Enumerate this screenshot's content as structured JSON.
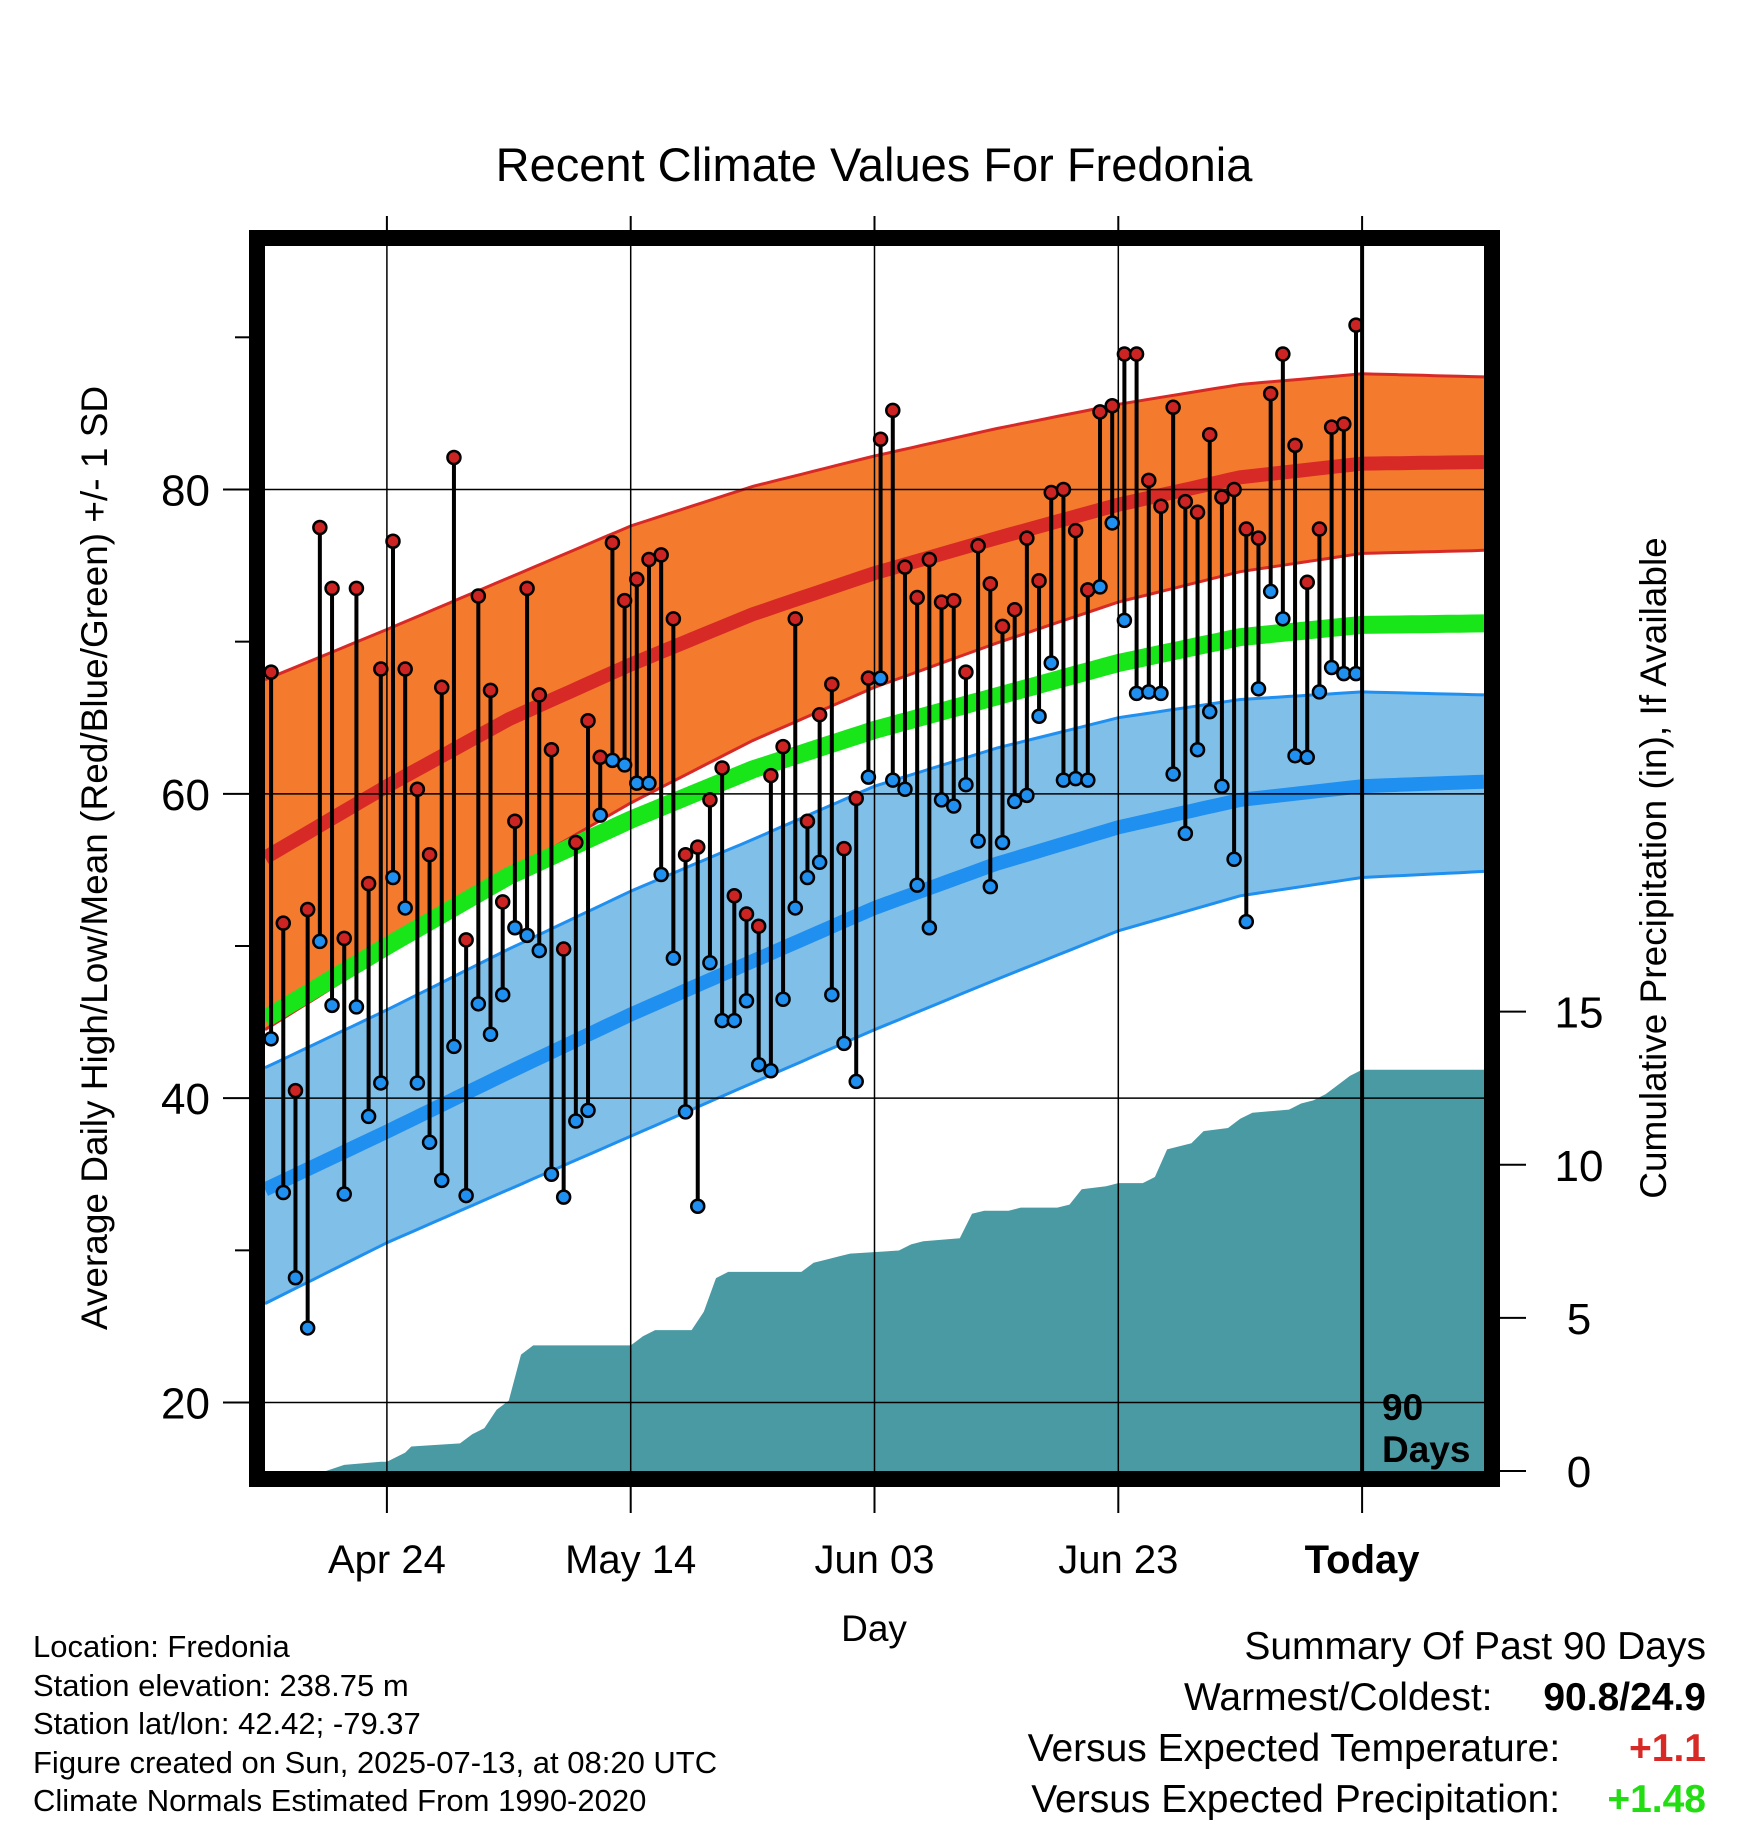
{
  "chart_data": {
    "type": "line",
    "title": "Recent Climate Values For Fredonia",
    "xlabel": "Day",
    "ylabel": "Average Daily High/Low/Mean (Red/Blue/Green) +/- 1 SD",
    "y2label": "Cumulative Precipitation (in), If Available",
    "x_start_day": "2025-04-14",
    "x_range_days": [
      0,
      100
    ],
    "ylim": [
      15.5,
      96
    ],
    "y2lim": [
      0,
      40
    ],
    "yticks": [
      20,
      40,
      60,
      80
    ],
    "y2ticks": [
      0,
      5,
      10,
      15
    ],
    "grid": true,
    "xticks": [
      {
        "day": 10,
        "label": "Apr 24"
      },
      {
        "day": 30,
        "label": "May 14"
      },
      {
        "day": 50,
        "label": "Jun 03"
      },
      {
        "day": 70,
        "label": "Jun 23"
      },
      {
        "day": 90,
        "label": "Today"
      }
    ],
    "today_day": 90,
    "today_marker_label": [
      "90",
      "Days"
    ],
    "normals": {
      "day": [
        0,
        10,
        20,
        30,
        40,
        50,
        60,
        70,
        80,
        90,
        100
      ],
      "high_mean": [
        55.8,
        60.5,
        64.9,
        68.5,
        71.8,
        74.5,
        76.8,
        79.0,
        80.8,
        81.7,
        81.8
      ],
      "high_upper": [
        67.5,
        70.8,
        74.2,
        77.6,
        80.2,
        82.2,
        84.0,
        85.6,
        86.9,
        87.6,
        87.4
      ],
      "high_lower": [
        44.5,
        49.5,
        54.8,
        59.4,
        63.5,
        67.0,
        69.9,
        72.6,
        74.6,
        75.8,
        76.0
      ],
      "low_mean": [
        34.0,
        37.8,
        41.7,
        45.5,
        49.0,
        52.5,
        55.4,
        57.8,
        59.6,
        60.5,
        60.8
      ],
      "low_upper": [
        42.0,
        45.8,
        49.8,
        53.6,
        57.0,
        60.5,
        63.0,
        65.0,
        66.2,
        66.7,
        66.5
      ],
      "low_lower": [
        26.5,
        30.5,
        34.0,
        37.5,
        41.0,
        44.5,
        47.8,
        51.0,
        53.3,
        54.5,
        54.9
      ],
      "mean": [
        45.2,
        50.0,
        54.6,
        58.3,
        61.6,
        64.2,
        66.4,
        68.6,
        70.3,
        71.1,
        71.2
      ]
    },
    "daily": {
      "day": [
        0,
        1,
        2,
        3,
        4,
        5,
        6,
        7,
        8,
        9,
        10,
        11,
        12,
        13,
        14,
        15,
        16,
        17,
        18,
        19,
        20,
        21,
        22,
        23,
        24,
        25,
        26,
        27,
        28,
        29,
        30,
        31,
        32,
        33,
        34,
        35,
        36,
        37,
        38,
        39,
        40,
        41,
        42,
        43,
        44,
        45,
        46,
        47,
        48,
        49,
        50,
        51,
        52,
        53,
        54,
        55,
        56,
        57,
        58,
        59,
        60,
        61,
        62,
        63,
        64,
        65,
        66,
        67,
        68,
        69,
        70,
        71,
        72,
        73,
        74,
        75,
        76,
        77,
        78,
        79,
        80,
        81,
        82,
        83,
        84,
        85,
        86,
        87,
        88,
        89
      ],
      "high": [
        68.0,
        51.5,
        40.5,
        52.4,
        77.5,
        73.5,
        50.5,
        73.5,
        54.1,
        68.2,
        76.6,
        68.2,
        60.3,
        56.0,
        67.0,
        82.1,
        50.4,
        73.0,
        66.8,
        52.9,
        58.2,
        73.5,
        66.5,
        62.9,
        49.8,
        56.8,
        64.8,
        62.4,
        76.5,
        72.7,
        74.1,
        75.4,
        75.7,
        71.5,
        56.0,
        56.5,
        59.6,
        61.7,
        53.3,
        52.1,
        51.3,
        61.2,
        63.1,
        71.5,
        58.2,
        65.2,
        67.2,
        56.4,
        59.7,
        67.6,
        83.3,
        85.2,
        74.9,
        72.9,
        75.4,
        72.6,
        72.7,
        68.0,
        76.3,
        73.8,
        71.0,
        72.1,
        76.8,
        74.0,
        79.8,
        80.0,
        77.3,
        73.4,
        85.1,
        85.5,
        88.9,
        88.9,
        80.6,
        78.9,
        85.4,
        79.2,
        78.5,
        83.6,
        79.5,
        80.0,
        77.4,
        76.8,
        86.3,
        88.9,
        82.9,
        73.9,
        77.4,
        84.1,
        84.3,
        90.8
      ],
      "low": [
        43.9,
        33.8,
        28.2,
        24.9,
        50.3,
        46.1,
        33.7,
        46.0,
        38.8,
        41.0,
        54.5,
        52.5,
        41.0,
        37.1,
        34.6,
        43.4,
        33.6,
        46.2,
        44.2,
        46.8,
        51.2,
        50.7,
        49.7,
        35.0,
        33.5,
        38.5,
        39.2,
        58.6,
        62.2,
        61.9,
        60.7,
        60.7,
        54.7,
        49.2,
        39.1,
        32.9,
        48.9,
        45.1,
        45.1,
        46.4,
        42.2,
        41.8,
        46.5,
        52.5,
        54.5,
        55.5,
        46.8,
        43.6,
        41.1,
        61.1,
        67.6,
        60.9,
        60.3,
        54.0,
        51.2,
        59.6,
        59.2,
        60.6,
        56.9,
        53.9,
        56.8,
        59.5,
        59.9,
        65.1,
        68.6,
        60.9,
        61.0,
        60.9,
        73.6,
        77.8,
        71.4,
        66.6,
        66.7,
        66.6,
        61.3,
        57.4,
        62.9,
        65.4,
        60.5,
        55.7,
        51.6,
        66.9,
        73.3,
        71.5,
        62.5,
        62.4,
        66.7,
        68.3,
        67.9,
        67.9
      ]
    },
    "precip": {
      "day": [
        0,
        5,
        6.5,
        9.5,
        10,
        11.5,
        12,
        16,
        17,
        18,
        19,
        20,
        21,
        22,
        23,
        30,
        31,
        32,
        35,
        36,
        37,
        38,
        44,
        45,
        46,
        47,
        48,
        52,
        53,
        54,
        57,
        58,
        59,
        61,
        62,
        64,
        65,
        66,
        67,
        69,
        70,
        72,
        73,
        74,
        76,
        77,
        79,
        80,
        81,
        84,
        85,
        86,
        87,
        88,
        89,
        90,
        100
      ],
      "total": [
        0,
        0,
        0.2,
        0.3,
        0.3,
        0.6,
        0.8,
        0.9,
        1.2,
        1.4,
        2.0,
        2.3,
        3.8,
        4.1,
        4.1,
        4.1,
        4.4,
        4.6,
        4.6,
        5.2,
        6.3,
        6.5,
        6.5,
        6.8,
        6.9,
        7.0,
        7.1,
        7.2,
        7.4,
        7.5,
        7.6,
        8.4,
        8.5,
        8.5,
        8.6,
        8.6,
        8.6,
        8.7,
        9.2,
        9.3,
        9.4,
        9.4,
        9.6,
        10.5,
        10.7,
        11.1,
        11.2,
        11.5,
        11.7,
        11.8,
        12.0,
        12.1,
        12.3,
        12.6,
        12.9,
        13.1,
        13.1
      ]
    },
    "colors": {
      "high_band": "#f47a2e",
      "high_line": "#d72a26",
      "low_band": "#80bfe8",
      "low_line": "#1f8ff0",
      "mean_line": "#19e619",
      "precip": "#4a9aa4",
      "high_marker": "#cc2323",
      "low_marker": "#1f8ff0"
    }
  },
  "footer": {
    "location": "Location: Fredonia",
    "elevation": "Station elevation: 238.75 m",
    "latlon": "Station lat/lon: 42.42; -79.37",
    "created": "Figure created on Sun, 2025-07-13, at 08:20 UTC",
    "normals": "Climate Normals Estimated From 1990-2020"
  },
  "summary": {
    "heading": "Summary Of Past 90 Days",
    "warmest_label": "Warmest/Coldest:",
    "warmest_value": "90.8/24.9",
    "temp_label": "Versus Expected Temperature:",
    "temp_value": "+1.1",
    "temp_color": "#d72a26",
    "precip_label": "Versus Expected Precipitation:",
    "precip_value": "+1.48",
    "precip_color": "#22dd11"
  }
}
